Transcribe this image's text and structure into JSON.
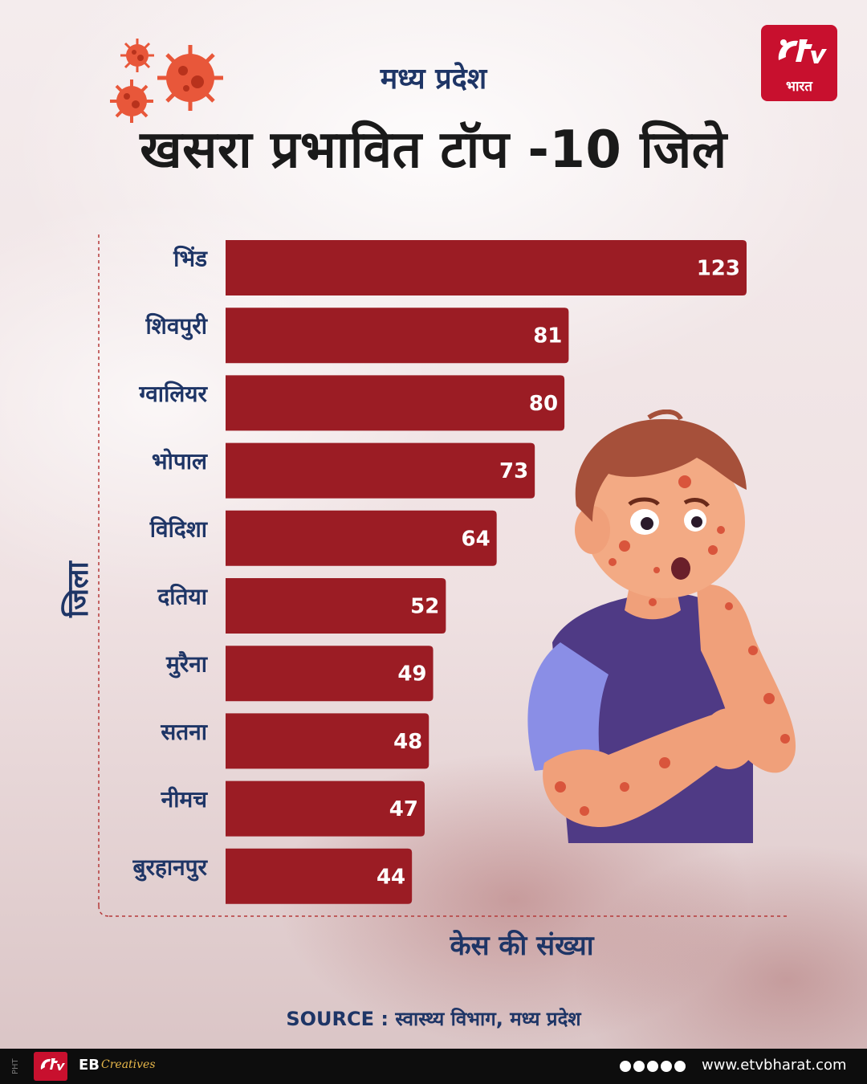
{
  "header": {
    "subtitle": "मध्य प्रदेश",
    "title": "खसरा प्रभावित टॉप -10 जिले",
    "logo_text": "भारत"
  },
  "chart_data": {
    "type": "bar",
    "orientation": "horizontal",
    "categories": [
      "भिंड",
      "शिवपुरी",
      "ग्वालियर",
      "भोपाल",
      "विदिशा",
      "दतिया",
      "मुरैना",
      "सतना",
      "नीमच",
      "बुरहानपुर"
    ],
    "values": [
      123,
      81,
      80,
      73,
      64,
      52,
      49,
      48,
      47,
      44
    ],
    "xlabel": "केस की संख्या",
    "ylabel": "जिला",
    "xlim": [
      0,
      123
    ],
    "bar_color": "#9b1c24",
    "label_color": "#1e3566",
    "grid": false
  },
  "source": "SOURCE : स्वास्थ्य विभाग, मध्य प्रदेश",
  "footer": {
    "pht": "PHT",
    "eb": "EB",
    "creatives": "Creatives",
    "url": "www.etvbharat.com"
  }
}
